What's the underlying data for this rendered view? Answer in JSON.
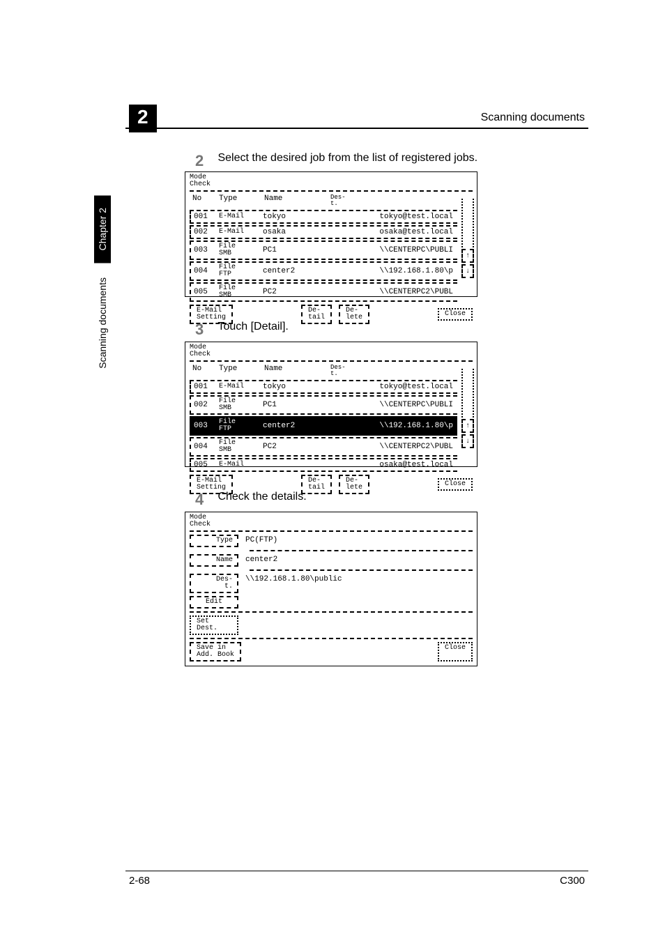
{
  "header": {
    "running_title": "Scanning documents",
    "chapter_number": "2"
  },
  "sidebar": {
    "chapter_tab": "Chapter 2",
    "section_caption": "Scanning documents"
  },
  "steps": {
    "s2": {
      "num": "2",
      "text": "Select the desired job from the list of registered jobs."
    },
    "s3": {
      "num": "3",
      "text": "Touch [Detail]."
    },
    "s4": {
      "num": "4",
      "text": "Check the details."
    }
  },
  "panel1": {
    "title": "Mode\nCheck",
    "cols": {
      "no": "No",
      "type": "Type",
      "name": "Name",
      "dest": "Des-\nt."
    },
    "rows": [
      {
        "no": "001",
        "type": "E-Mail",
        "name": "tokyo",
        "dest": "tokyo@test.local",
        "selected": false
      },
      {
        "no": "002",
        "type": "E-Mail",
        "name": "osaka",
        "dest": "osaka@test.local",
        "selected": false
      },
      {
        "no": "003",
        "type": "File\nSMB",
        "name": "PC1",
        "dest": "\\\\CENTERPC\\PUBLI",
        "selected": false
      },
      {
        "no": "004",
        "type": "File\nFTP",
        "name": "center2",
        "dest": "\\\\192.168.1.80\\p",
        "selected": false
      },
      {
        "no": "005",
        "type": "File\nSMB",
        "name": "PC2",
        "dest": "\\\\CENTERPC2\\PUBL",
        "selected": false
      }
    ],
    "buttons": {
      "email": "E-Mail\nSetting",
      "detail": "De-\ntail",
      "delete": "De-\nlete",
      "close": "Close"
    },
    "scroll": {
      "up": "↑",
      "down": "↓"
    }
  },
  "panel2": {
    "title": "Mode\nCheck",
    "cols": {
      "no": "No",
      "type": "Type",
      "name": "Name",
      "dest": "Des-\nt."
    },
    "rows": [
      {
        "no": "001",
        "type": "E-Mail",
        "name": "tokyo",
        "dest": "tokyo@test.local",
        "selected": false
      },
      {
        "no": "002",
        "type": "File\nSMB",
        "name": "PC1",
        "dest": "\\\\CENTERPC\\PUBLI",
        "selected": false
      },
      {
        "no": "003",
        "type": "File\nFTP",
        "name": "center2",
        "dest": "\\\\192.168.1.80\\p",
        "selected": true
      },
      {
        "no": "004",
        "type": "File\nSMB",
        "name": "PC2",
        "dest": "\\\\CENTERPC2\\PUBL",
        "selected": false
      },
      {
        "no": "005",
        "type": "E-Mail",
        "name": "",
        "dest": "osaka@test.local",
        "selected": false
      }
    ],
    "buttons": {
      "email": "E-Mail\nSetting",
      "detail": "De-\ntail",
      "delete": "De-\nlete",
      "close": "Close"
    },
    "scroll": {
      "up": "↑",
      "down": "↓"
    }
  },
  "panel3": {
    "title": "Mode\nCheck",
    "fields": {
      "type_lbl": "Type",
      "type_val": "PC(FTP)",
      "name_lbl": "Name",
      "name_val": "center2",
      "dest_lbl": "Des-\nt.",
      "dest_val": "\\\\192.168.1.80\\public"
    },
    "buttons": {
      "edit": "Edit",
      "set_dest": "Set\nDest.",
      "save": "Save in\nAdd. Book",
      "close": "Close"
    }
  },
  "footer": {
    "page": "2-68",
    "model": "C300"
  }
}
